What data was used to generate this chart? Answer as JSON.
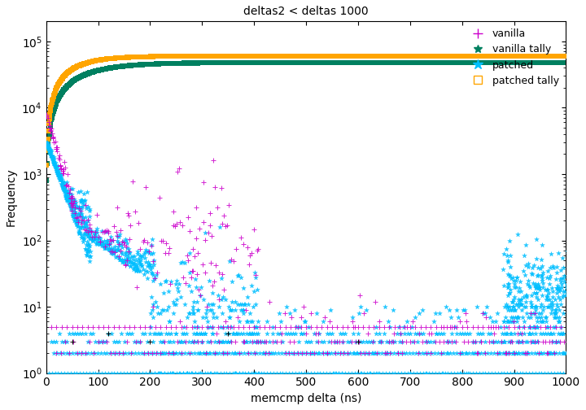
{
  "title": "deltas2 < deltas 1000",
  "xlabel": "memcmp delta (ns)",
  "ylabel": "Frequency",
  "xlim": [
    0,
    1000
  ],
  "ylim_log": [
    1,
    200000
  ],
  "background_color": "#ffffff",
  "vanilla_color": "#cc00cc",
  "patched_color": "#00bfff",
  "vanilla_tally_color": "#ffa500",
  "patched_tally_color": "#008060",
  "black_color": "#000000"
}
